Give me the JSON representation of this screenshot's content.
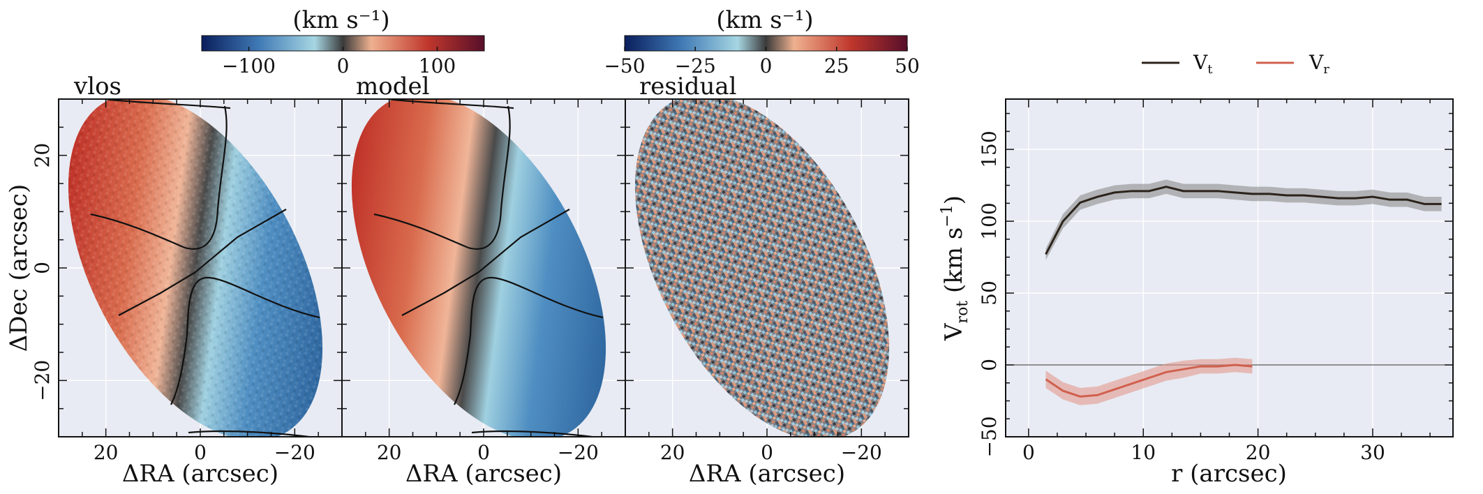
{
  "colorbars": [
    {
      "title": "(km s⁻¹)",
      "ticks": [
        "−100",
        "0",
        "100"
      ],
      "tick_values": [
        -100,
        0,
        100
      ],
      "range": [
        -150,
        150
      ]
    },
    {
      "title": "(km s⁻¹)",
      "ticks": [
        "−50",
        "−25",
        "0",
        "25",
        "50"
      ],
      "tick_values": [
        -50,
        -25,
        0,
        25,
        50
      ],
      "range": [
        -50,
        50
      ]
    }
  ],
  "panels": [
    {
      "title": "vlos"
    },
    {
      "title": "model"
    },
    {
      "title": "residual"
    }
  ],
  "map_axes": {
    "xlabel": "ΔRA (arcsec)",
    "ylabel": "ΔDec (arcsec)",
    "xticks": [
      "20",
      "0",
      "−20"
    ],
    "xtick_values": [
      20,
      0,
      -20
    ],
    "yticks": [
      "20",
      "0",
      "−20"
    ],
    "ytick_values": [
      20,
      0,
      -20
    ],
    "xlim": [
      30,
      -30
    ],
    "ylim": [
      -30,
      30
    ]
  },
  "rc_axes": {
    "xlabel": "r (arcsec)",
    "ylabel": "V rot (km s⁻¹)",
    "ylabel_main": "V",
    "ylabel_sub": "rot",
    "ylabel_rest": " (km s",
    "ylabel_sup": "−1",
    "ylabel_close": ")",
    "xticks": [
      "0",
      "10",
      "20",
      "30"
    ],
    "yticks": [
      "−50",
      "0",
      "50",
      "100",
      "150"
    ]
  },
  "legend": [
    {
      "main": "V",
      "sub": "t"
    },
    {
      "main": "V",
      "sub": "r"
    }
  ],
  "colors": {
    "vt": "#2b231b",
    "vr": "#d0604e",
    "vt_band": "#8c8c8c",
    "vr_band": "#e39a8d",
    "axes_bg": "#e8ebf3",
    "grid": "#ffffff"
  },
  "chart_data": [
    {
      "type": "heatmap",
      "name": "vlos",
      "xlim": [
        30,
        -30
      ],
      "ylim": [
        -30,
        30
      ],
      "colormap": "RdBu_r-like (blue negative, red positive)",
      "vmin": -150,
      "vmax": 150,
      "contours": true
    },
    {
      "type": "heatmap",
      "name": "model",
      "xlim": [
        30,
        -30
      ],
      "ylim": [
        -30,
        30
      ],
      "vmin": -150,
      "vmax": 150,
      "contours": true
    },
    {
      "type": "heatmap",
      "name": "residual",
      "xlim": [
        30,
        -30
      ],
      "ylim": [
        -30,
        30
      ],
      "vmin": -50,
      "vmax": 50
    },
    {
      "type": "line",
      "xlim": [
        -2,
        37
      ],
      "ylim": [
        -50,
        185
      ],
      "series": [
        {
          "name": "V t",
          "x": [
            1.5,
            3,
            4.5,
            6,
            7.5,
            9,
            10.5,
            12,
            13.5,
            15,
            16.5,
            18,
            19.5,
            21,
            22.5,
            24,
            25.5,
            27,
            28.5,
            30,
            31.5,
            33,
            34.5,
            36
          ],
          "y": [
            77,
            100,
            113,
            117,
            120,
            121,
            121,
            124,
            121,
            121,
            121,
            120,
            119,
            119,
            118,
            118,
            117,
            116,
            116,
            117,
            115,
            115,
            112,
            112
          ],
          "err": [
            4,
            5,
            5,
            5,
            5,
            5,
            5,
            5,
            5,
            5,
            5,
            5,
            5,
            5,
            5,
            5,
            5,
            5,
            5,
            5,
            5,
            5,
            5,
            5
          ]
        },
        {
          "name": "V r",
          "x": [
            1.5,
            3,
            4.5,
            6,
            7.5,
            9,
            10.5,
            12,
            13.5,
            15,
            16.5,
            18,
            19.5
          ],
          "y": [
            -10,
            -18,
            -22,
            -21,
            -17,
            -13,
            -9,
            -5,
            -3,
            -1,
            -1,
            0,
            -1
          ],
          "err": [
            6,
            6,
            6,
            6,
            6,
            6,
            6,
            6,
            6,
            5,
            5,
            5,
            5
          ]
        }
      ]
    }
  ]
}
